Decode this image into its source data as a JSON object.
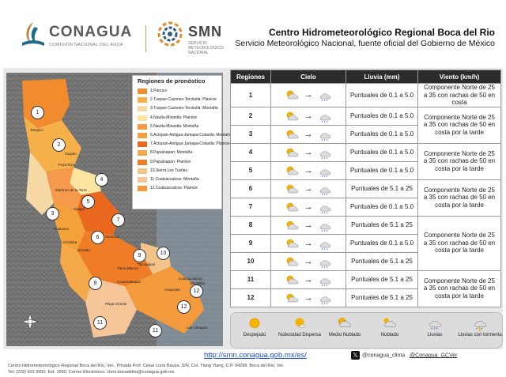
{
  "header": {
    "conagua": {
      "name": "CONAGUA",
      "subtitle": "COMISIÓN NACIONAL DEL AGUA"
    },
    "smn": {
      "name": "SMN",
      "subtitle": "SERVICIO METEOROLÓGICO NACIONAL"
    },
    "title": "Centro Hidrometeorológico Regional Boca del Rio",
    "subtitle": "Servicio Meteorológico Nacional, fuente oficial del Gobierno de México"
  },
  "legend": {
    "title": "Regiones de pronóstico",
    "items": [
      {
        "label": "1.Pánuco",
        "color": "#f28a2e"
      },
      {
        "label": "2.Tuxpan-Cazones-Tecolutla: Planicie",
        "color": "#f6b04a"
      },
      {
        "label": "3.Tuxpan-Cazones-Tecolutla: Montaña",
        "color": "#f7d9a6"
      },
      {
        "label": "4.Nautla-Misantla: Planicie",
        "color": "#fbe3a0"
      },
      {
        "label": "5.Nautla-Misantla: Montaña",
        "color": "#f59a4a"
      },
      {
        "label": "6.Actopan-Antigua-Jamapa-Cotaxtla: Montaña",
        "color": "#f4a13a"
      },
      {
        "label": "7.Actopan-Antigua-Jamapa-Cotaxtla: Planicie",
        "color": "#e9681d"
      },
      {
        "label": "8.Papaloapan: Montaña",
        "color": "#f6a94a"
      },
      {
        "label": "9.Papaloapan: Planicie",
        "color": "#ef7d28"
      },
      {
        "label": "10.Sierra Los Tuxtlas",
        "color": "#f2c48a"
      },
      {
        "label": "11.Coatzacoalcos: Montaña",
        "color": "#f6c698"
      },
      {
        "label": "12.Coatzacoalcos: Planicie",
        "color": "#f39a3c"
      }
    ]
  },
  "map": {
    "cities": [
      "Tampico",
      "Tuxpan",
      "Poza Rica",
      "Martínez de la Torre",
      "Xalapa",
      "Veracruz",
      "Orizaba",
      "Tierra Blanca",
      "Tlacotalpan",
      "Cosamaloapan",
      "Acayucan",
      "Coatzacoalcos",
      "Las Choapas",
      "Minatitlán",
      "Playa Vicente",
      "Huatusco",
      "Córdoba"
    ],
    "region_pins": [
      "1",
      "2",
      "3",
      "4",
      "5",
      "6",
      "7",
      "8",
      "9",
      "10",
      "11",
      "11",
      "12",
      "12"
    ]
  },
  "table": {
    "headers": [
      "Regiones",
      "Cielo",
      "Lluvia (mm)",
      "Viento (km/h)"
    ],
    "rows": [
      {
        "region": "1",
        "from": "sun-cloud",
        "to": "rain",
        "rain": "Puntuales de 0.1 a 5.0"
      },
      {
        "region": "2",
        "from": "sun-cloud",
        "to": "rain",
        "rain": "Puntuales de 0.1 a 5.0"
      },
      {
        "region": "3",
        "from": "sun-cloud",
        "to": "rain",
        "rain": "Puntuales de 0.1 a 5.0"
      },
      {
        "region": "4",
        "from": "sun-cloud",
        "to": "rain",
        "rain": "Puntuales de 0.1 a 5.0"
      },
      {
        "region": "5",
        "from": "sun-cloud",
        "to": "rain",
        "rain": "Puntuales de 0.1 a 5.0"
      },
      {
        "region": "6",
        "from": "sun-cloud",
        "to": "rain",
        "rain": "Puntuales de 5.1 a 25"
      },
      {
        "region": "7",
        "from": "sun-cloud",
        "to": "rain",
        "rain": "Puntuales de 0.1 a 5.0"
      },
      {
        "region": "8",
        "from": "sun-cloud",
        "to": "rain",
        "rain": "Puntuales de 5.1 a 25"
      },
      {
        "region": "9",
        "from": "sun-cloud",
        "to": "rain",
        "rain": "Puntuales de 0.1 a 5.0"
      },
      {
        "region": "10",
        "from": "sun-cloud",
        "to": "rain",
        "rain": "Puntuales de 5.1 a 25"
      },
      {
        "region": "11",
        "from": "sun-cloud",
        "to": "rain",
        "rain": "Puntuales de 5.1 a 25"
      },
      {
        "region": "12",
        "from": "sun-cloud",
        "to": "rain",
        "rain": "Puntuales de 5.1 a 25"
      }
    ],
    "wind": [
      {
        "rows": 1,
        "text": "Componente Norte de 25 a 35 con rachas de 50 en costa"
      },
      {
        "rows": 2,
        "text": "Componente Norte de 25 a 35 con rachas de 50 en costa por la tarde"
      },
      {
        "rows": 2,
        "text": "Componente Norte de 25 a 35 con rachas de 50 en costa por la tarde"
      },
      {
        "rows": 2,
        "text": "Componente Norte de 25 a 35 con rachas de 50 en costa por la tarde"
      },
      {
        "rows": 3,
        "text": "Componente Norte de 25 a 35 con rachas de 50 en costa por la tarde"
      },
      {
        "rows": 2,
        "text": "Componente Norte de 25 a 35 con rachas de 50 en costa por la tarde"
      }
    ]
  },
  "sky_key": [
    {
      "label": "Despejado",
      "icon": "sun-icon"
    },
    {
      "label": "Nubosidad Dispersa",
      "icon": "sun-small-cloud-icon"
    },
    {
      "label": "Medio Nublado",
      "icon": "sun-cloud-icon"
    },
    {
      "label": "Nublado",
      "icon": "cloud-icon"
    },
    {
      "label": "Lluvias",
      "icon": "rain-icon"
    },
    {
      "label": "Lluvias con tormenta",
      "icon": "storm-icon"
    }
  ],
  "footer": {
    "url": "http://smn.conagua.gob.mx/es/",
    "x_handle": "@conagua_clima",
    "x_handle2": "@Conagua_GCVer",
    "address": "Centro Hidrometeorológico Regional Boca del Río, Ver., Privada Prof. César Luna Bauza, S/N, Col. Ylang Ylang, C.P. 94298, Boca del Río, Ver.",
    "contact": "Tel: (229) 923 3950, Ext. 1560; Correo Electrónico: chmr.bocadelrio@conagua.gob.mx"
  }
}
